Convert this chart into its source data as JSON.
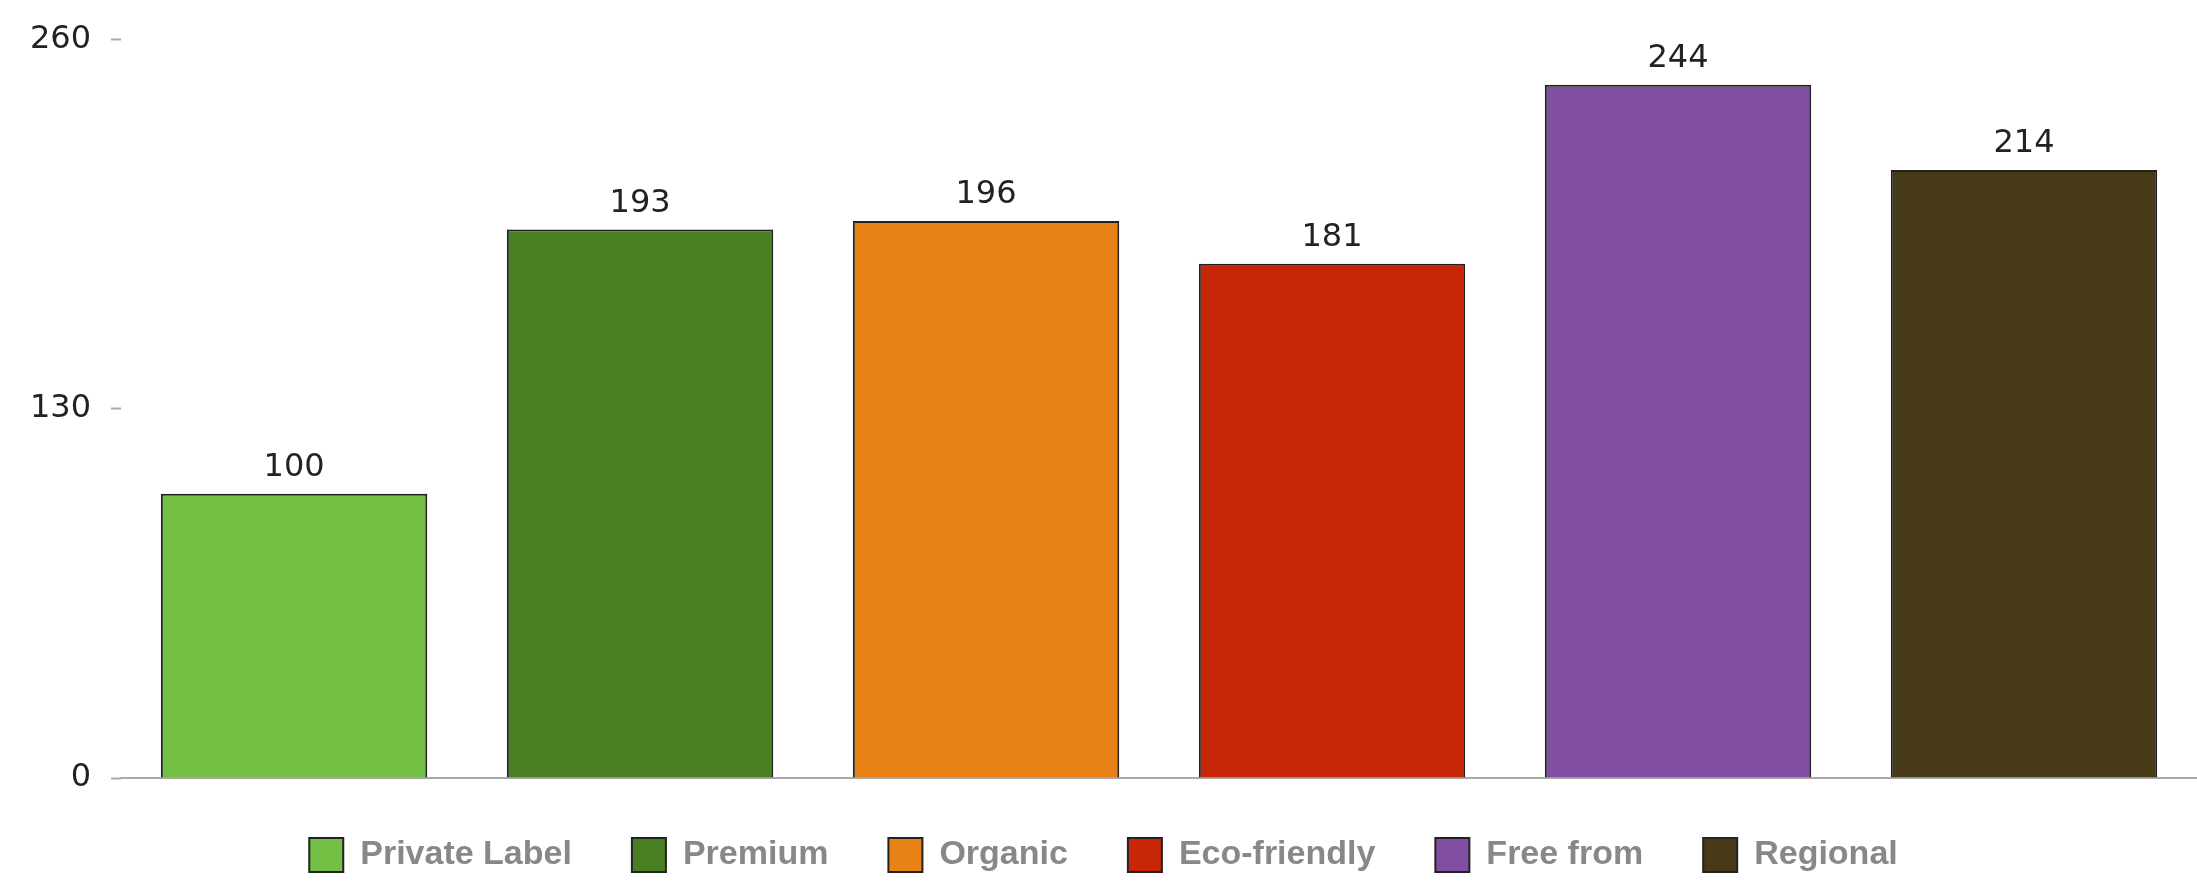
{
  "chart_data": {
    "type": "bar",
    "categories": [
      null,
      null,
      null,
      null,
      null,
      null
    ],
    "series": [
      {
        "name": "Private Label",
        "color": "#72bf44",
        "values": [
          100,
          null,
          null,
          null,
          null,
          null
        ]
      },
      {
        "name": "Premium",
        "color": "#477f22",
        "values": [
          null,
          193,
          null,
          null,
          null,
          null
        ]
      },
      {
        "name": "Organic",
        "color": "#e78216",
        "values": [
          null,
          null,
          196,
          null,
          null,
          null
        ]
      },
      {
        "name": "Eco-friendly",
        "color": "#c72609",
        "values": [
          null,
          null,
          null,
          181,
          null,
          null
        ]
      },
      {
        "name": "Free from",
        "color": "#804fa1",
        "values": [
          null,
          null,
          null,
          null,
          244,
          null
        ]
      },
      {
        "name": "Regional",
        "color": "#473a16",
        "values": [
          null,
          null,
          null,
          null,
          null,
          214
        ]
      }
    ],
    "ylim": [
      0,
      260
    ],
    "yticks": [
      0,
      130,
      260
    ],
    "grid": false,
    "legend": "bottom",
    "data_labels": true
  }
}
